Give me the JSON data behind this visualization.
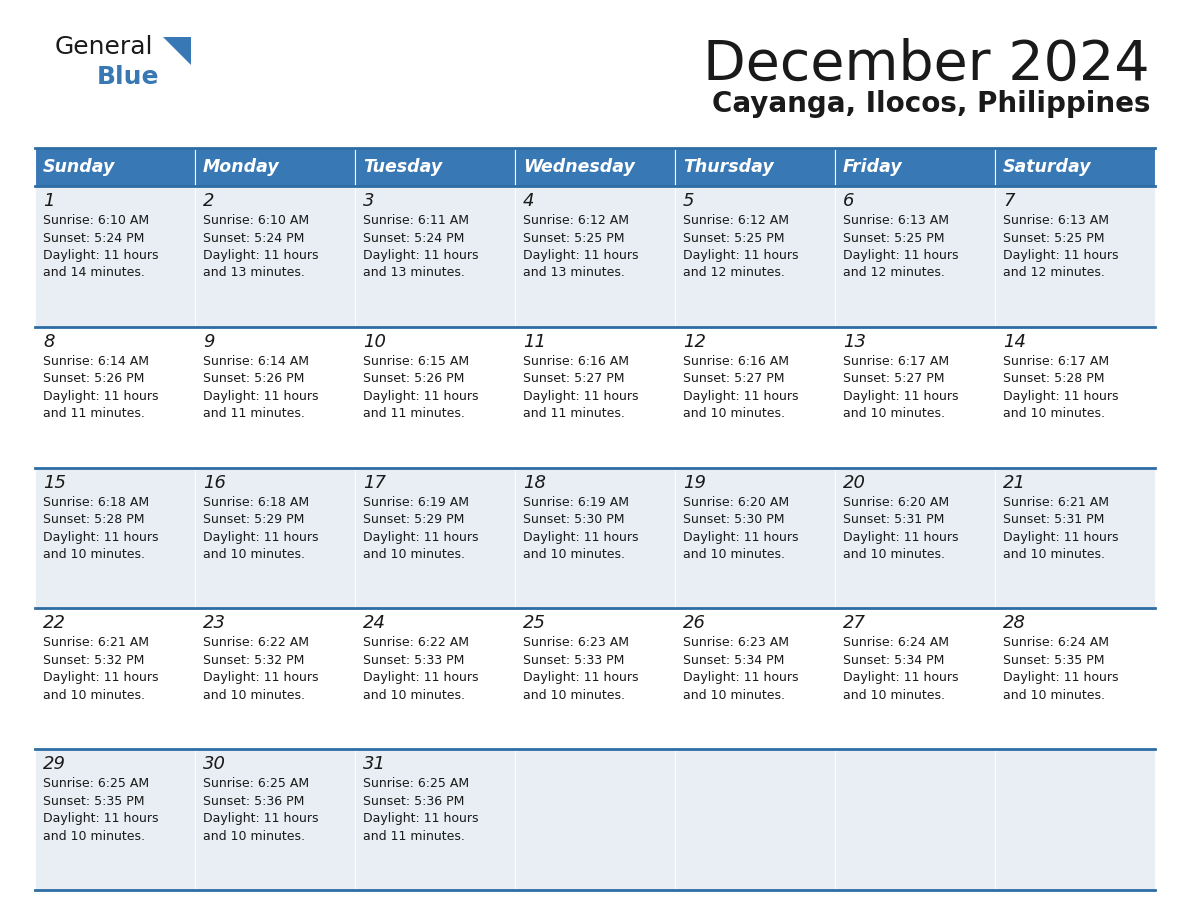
{
  "title": "December 2024",
  "subtitle": "Cayanga, Ilocos, Philippines",
  "header_color": "#3878b4",
  "header_text_color": "#ffffff",
  "cell_bg_even": "#e8eef4",
  "cell_bg_odd": "#ffffff",
  "border_color": "#2e6da4",
  "text_color": "#1a1a1a",
  "day_headers": [
    "Sunday",
    "Monday",
    "Tuesday",
    "Wednesday",
    "Thursday",
    "Friday",
    "Saturday"
  ],
  "days": [
    {
      "day": 1,
      "col": 0,
      "row": 0,
      "sunrise": "6:10 AM",
      "sunset": "5:24 PM",
      "dl_min": "14"
    },
    {
      "day": 2,
      "col": 1,
      "row": 0,
      "sunrise": "6:10 AM",
      "sunset": "5:24 PM",
      "dl_min": "13"
    },
    {
      "day": 3,
      "col": 2,
      "row": 0,
      "sunrise": "6:11 AM",
      "sunset": "5:24 PM",
      "dl_min": "13"
    },
    {
      "day": 4,
      "col": 3,
      "row": 0,
      "sunrise": "6:12 AM",
      "sunset": "5:25 PM",
      "dl_min": "13"
    },
    {
      "day": 5,
      "col": 4,
      "row": 0,
      "sunrise": "6:12 AM",
      "sunset": "5:25 PM",
      "dl_min": "12"
    },
    {
      "day": 6,
      "col": 5,
      "row": 0,
      "sunrise": "6:13 AM",
      "sunset": "5:25 PM",
      "dl_min": "12"
    },
    {
      "day": 7,
      "col": 6,
      "row": 0,
      "sunrise": "6:13 AM",
      "sunset": "5:25 PM",
      "dl_min": "12"
    },
    {
      "day": 8,
      "col": 0,
      "row": 1,
      "sunrise": "6:14 AM",
      "sunset": "5:26 PM",
      "dl_min": "11"
    },
    {
      "day": 9,
      "col": 1,
      "row": 1,
      "sunrise": "6:14 AM",
      "sunset": "5:26 PM",
      "dl_min": "11"
    },
    {
      "day": 10,
      "col": 2,
      "row": 1,
      "sunrise": "6:15 AM",
      "sunset": "5:26 PM",
      "dl_min": "11"
    },
    {
      "day": 11,
      "col": 3,
      "row": 1,
      "sunrise": "6:16 AM",
      "sunset": "5:27 PM",
      "dl_min": "11"
    },
    {
      "day": 12,
      "col": 4,
      "row": 1,
      "sunrise": "6:16 AM",
      "sunset": "5:27 PM",
      "dl_min": "10"
    },
    {
      "day": 13,
      "col": 5,
      "row": 1,
      "sunrise": "6:17 AM",
      "sunset": "5:27 PM",
      "dl_min": "10"
    },
    {
      "day": 14,
      "col": 6,
      "row": 1,
      "sunrise": "6:17 AM",
      "sunset": "5:28 PM",
      "dl_min": "10"
    },
    {
      "day": 15,
      "col": 0,
      "row": 2,
      "sunrise": "6:18 AM",
      "sunset": "5:28 PM",
      "dl_min": "10"
    },
    {
      "day": 16,
      "col": 1,
      "row": 2,
      "sunrise": "6:18 AM",
      "sunset": "5:29 PM",
      "dl_min": "10"
    },
    {
      "day": 17,
      "col": 2,
      "row": 2,
      "sunrise": "6:19 AM",
      "sunset": "5:29 PM",
      "dl_min": "10"
    },
    {
      "day": 18,
      "col": 3,
      "row": 2,
      "sunrise": "6:19 AM",
      "sunset": "5:30 PM",
      "dl_min": "10"
    },
    {
      "day": 19,
      "col": 4,
      "row": 2,
      "sunrise": "6:20 AM",
      "sunset": "5:30 PM",
      "dl_min": "10"
    },
    {
      "day": 20,
      "col": 5,
      "row": 2,
      "sunrise": "6:20 AM",
      "sunset": "5:31 PM",
      "dl_min": "10"
    },
    {
      "day": 21,
      "col": 6,
      "row": 2,
      "sunrise": "6:21 AM",
      "sunset": "5:31 PM",
      "dl_min": "10"
    },
    {
      "day": 22,
      "col": 0,
      "row": 3,
      "sunrise": "6:21 AM",
      "sunset": "5:32 PM",
      "dl_min": "10"
    },
    {
      "day": 23,
      "col": 1,
      "row": 3,
      "sunrise": "6:22 AM",
      "sunset": "5:32 PM",
      "dl_min": "10"
    },
    {
      "day": 24,
      "col": 2,
      "row": 3,
      "sunrise": "6:22 AM",
      "sunset": "5:33 PM",
      "dl_min": "10"
    },
    {
      "day": 25,
      "col": 3,
      "row": 3,
      "sunrise": "6:23 AM",
      "sunset": "5:33 PM",
      "dl_min": "10"
    },
    {
      "day": 26,
      "col": 4,
      "row": 3,
      "sunrise": "6:23 AM",
      "sunset": "5:34 PM",
      "dl_min": "10"
    },
    {
      "day": 27,
      "col": 5,
      "row": 3,
      "sunrise": "6:24 AM",
      "sunset": "5:34 PM",
      "dl_min": "10"
    },
    {
      "day": 28,
      "col": 6,
      "row": 3,
      "sunrise": "6:24 AM",
      "sunset": "5:35 PM",
      "dl_min": "10"
    },
    {
      "day": 29,
      "col": 0,
      "row": 4,
      "sunrise": "6:25 AM",
      "sunset": "5:35 PM",
      "dl_min": "10"
    },
    {
      "day": 30,
      "col": 1,
      "row": 4,
      "sunrise": "6:25 AM",
      "sunset": "5:36 PM",
      "dl_min": "10"
    },
    {
      "day": 31,
      "col": 2,
      "row": 4,
      "sunrise": "6:25 AM",
      "sunset": "5:36 PM",
      "dl_min": "11"
    }
  ],
  "num_rows": 5,
  "logo_general_color": "#1a1a1a",
  "logo_blue_color": "#3878b4",
  "logo_triangle_color": "#3878b4"
}
